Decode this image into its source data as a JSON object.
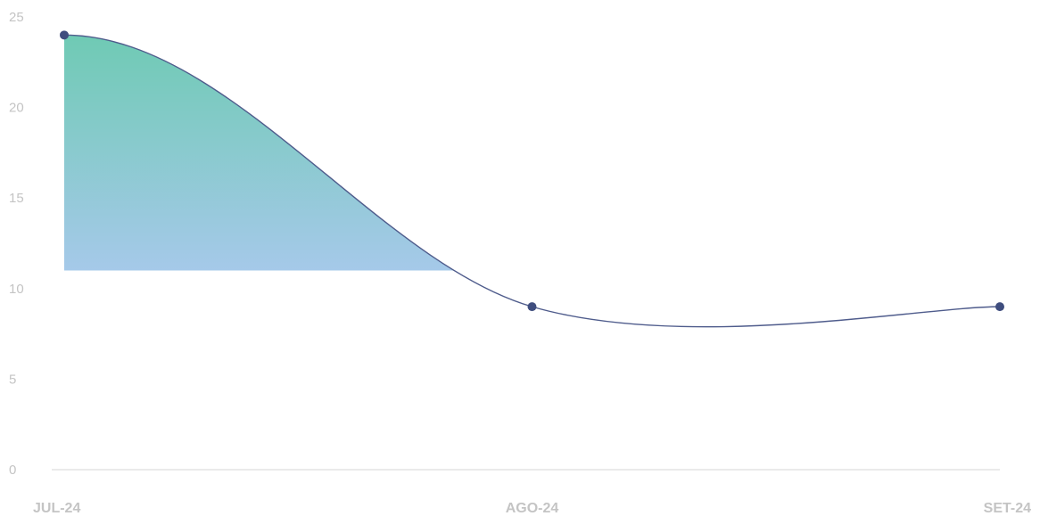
{
  "chart_data": {
    "type": "area",
    "categories": [
      "JUL-24",
      "AGO-24",
      "SET-24"
    ],
    "series": [
      {
        "values": [
          24,
          9,
          9
        ]
      }
    ],
    "ylim": [
      0,
      25
    ],
    "yticks": [
      0,
      5,
      10,
      15,
      20,
      25
    ],
    "grid": false,
    "legend": "none",
    "colors": {
      "line": "#4f5c8c",
      "marker": "#3f4d7e",
      "fill_top": "#6fcab4",
      "fill_mid": "#a6c9ea",
      "fill_bottom": "#ffffff",
      "baseline": "#d4d4d4",
      "tick_label": "#c4c4c4"
    }
  }
}
